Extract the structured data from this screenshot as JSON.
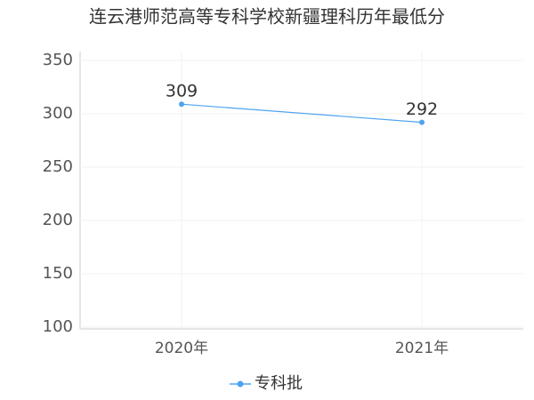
{
  "chart_data": {
    "type": "line",
    "title": "连云港师范高等专科学校新疆理科历年最低分",
    "categories": [
      "2020年",
      "2021年"
    ],
    "series": [
      {
        "name": "专科批",
        "color": "#4da3f0",
        "values": [
          309,
          292
        ]
      }
    ],
    "ylim": [
      100,
      350
    ],
    "yticks": [
      100,
      150,
      200,
      250,
      300,
      350
    ],
    "grid": true,
    "legend": "bottom"
  }
}
